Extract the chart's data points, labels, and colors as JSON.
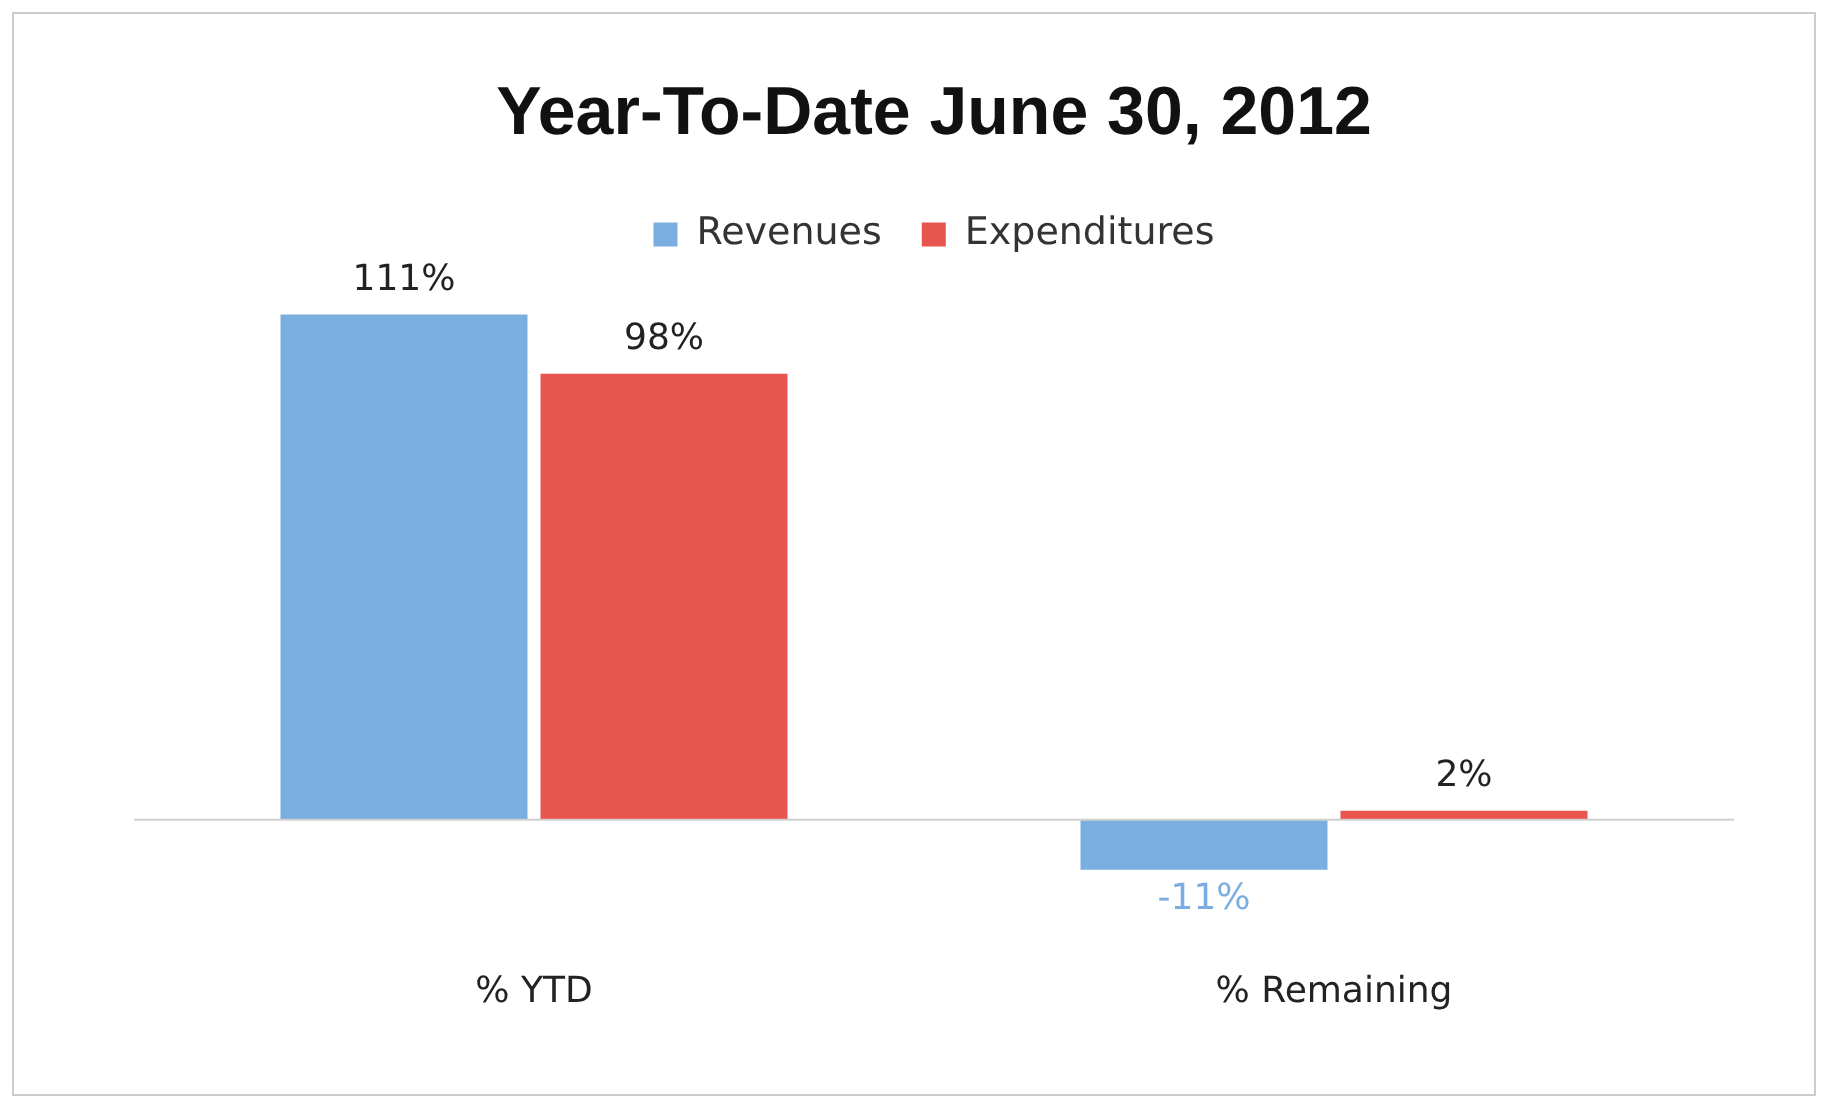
{
  "chart_data": {
    "type": "bar",
    "title": "Year-To-Date June 30, 2012",
    "categories": [
      "% YTD",
      "% Remaining"
    ],
    "series": [
      {
        "name": "Revenues",
        "color": "#7aaee0",
        "values": [
          111,
          -11
        ],
        "value_labels": [
          "111%",
          "-11%"
        ]
      },
      {
        "name": "Expenditures",
        "color": "#e8554e",
        "values": [
          98,
          2
        ],
        "value_labels": [
          "98%",
          "2%"
        ]
      }
    ],
    "legend": "top",
    "grid": false
  }
}
